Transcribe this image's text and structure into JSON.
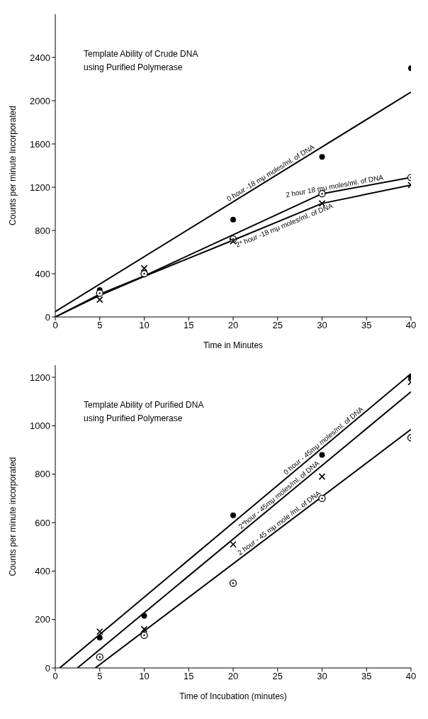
{
  "chart_data": [
    {
      "type": "scatter",
      "title": "Template Ability of Crude DNA\nusing Purified Polymerase",
      "xlabel": "Time in Minutes",
      "ylabel": "Counts per minute Incorporated",
      "xlim": [
        0,
        40
      ],
      "xticks": [
        0,
        5,
        10,
        15,
        20,
        25,
        30,
        35,
        40
      ],
      "ylim": [
        0,
        2800
      ],
      "yticks": [
        0,
        400,
        800,
        1200,
        1600,
        2000,
        2400
      ],
      "series": [
        {
          "type": "line",
          "name": "0 hour -18 mμ moles/ml. of DNA",
          "color": "#000000",
          "x": [
            0,
            40
          ],
          "values": [
            50,
            2080
          ]
        },
        {
          "type": "line",
          "name": "2 hour 18 mμ moles/ml. of DNA",
          "color": "#000000",
          "x": [
            0,
            5,
            10,
            20,
            30,
            40
          ],
          "values": [
            0,
            210,
            380,
            760,
            1140,
            1290
          ]
        },
        {
          "type": "line",
          "name": "2* hour -18 mμ moles/ml. of DNA",
          "color": "#000000",
          "x": [
            0,
            5,
            10,
            20,
            30,
            40
          ],
          "values": [
            0,
            200,
            375,
            710,
            1050,
            1220
          ]
        },
        {
          "color": "#000000",
          "marker": "circle",
          "x": [
            5,
            10,
            20,
            30,
            40
          ],
          "values": [
            250,
            null,
            900,
            1480,
            2300
          ]
        },
        {
          "color": "#000000",
          "marker": "circle",
          "x": [
            5,
            10,
            20,
            30,
            40
          ],
          "values": [
            220,
            400,
            720,
            1140,
            1290
          ]
        },
        {
          "color": "#000000",
          "marker": "cross",
          "x": [
            5,
            10,
            20,
            30,
            40
          ],
          "values": [
            160,
            450,
            700,
            1050,
            1220
          ]
        }
      ]
    },
    {
      "type": "scatter",
      "title": "Template Ability of Purified DNA\nusing Purified Polymerase",
      "xlabel": "Time of Incubation (minutes)",
      "ylabel": "Counts per minute incorporated",
      "xlim": [
        0,
        40
      ],
      "xticks": [
        0,
        5,
        10,
        15,
        20,
        25,
        30,
        35,
        40
      ],
      "ylim": [
        0,
        1250
      ],
      "yticks": [
        0,
        200,
        400,
        600,
        800,
        1000,
        1200
      ],
      "series": [
        {
          "type": "line",
          "name": "0 hour - 45mμ moles/ml. of DNA",
          "color": "#000000",
          "x": [
            0.5,
            40
          ],
          "values": [
            0,
            1215
          ]
        },
        {
          "type": "line",
          "name": "2*hour - 45mμ moles/ml. of DNA",
          "color": "#000000",
          "x": [
            2.5,
            40
          ],
          "values": [
            0,
            1140
          ]
        },
        {
          "type": "line",
          "name": "2 hour - 45 mμ mole /ml. of DNA",
          "color": "#000000",
          "x": [
            4.5,
            40
          ],
          "values": [
            0,
            985
          ]
        },
        {
          "color": "#000000",
          "marker": "circle",
          "x": [
            5,
            10,
            20,
            30,
            40
          ],
          "values": [
            125,
            215,
            630,
            880,
            1200
          ]
        },
        {
          "color": "#000000",
          "marker": "cross",
          "x": [
            5,
            10,
            20,
            30,
            40
          ],
          "values": [
            150,
            160,
            510,
            790,
            1180
          ]
        },
        {
          "color": "#000000",
          "marker": "circle",
          "x": [
            5,
            10,
            20,
            30,
            40
          ],
          "values": [
            45,
            135,
            350,
            700,
            950
          ]
        }
      ]
    }
  ]
}
